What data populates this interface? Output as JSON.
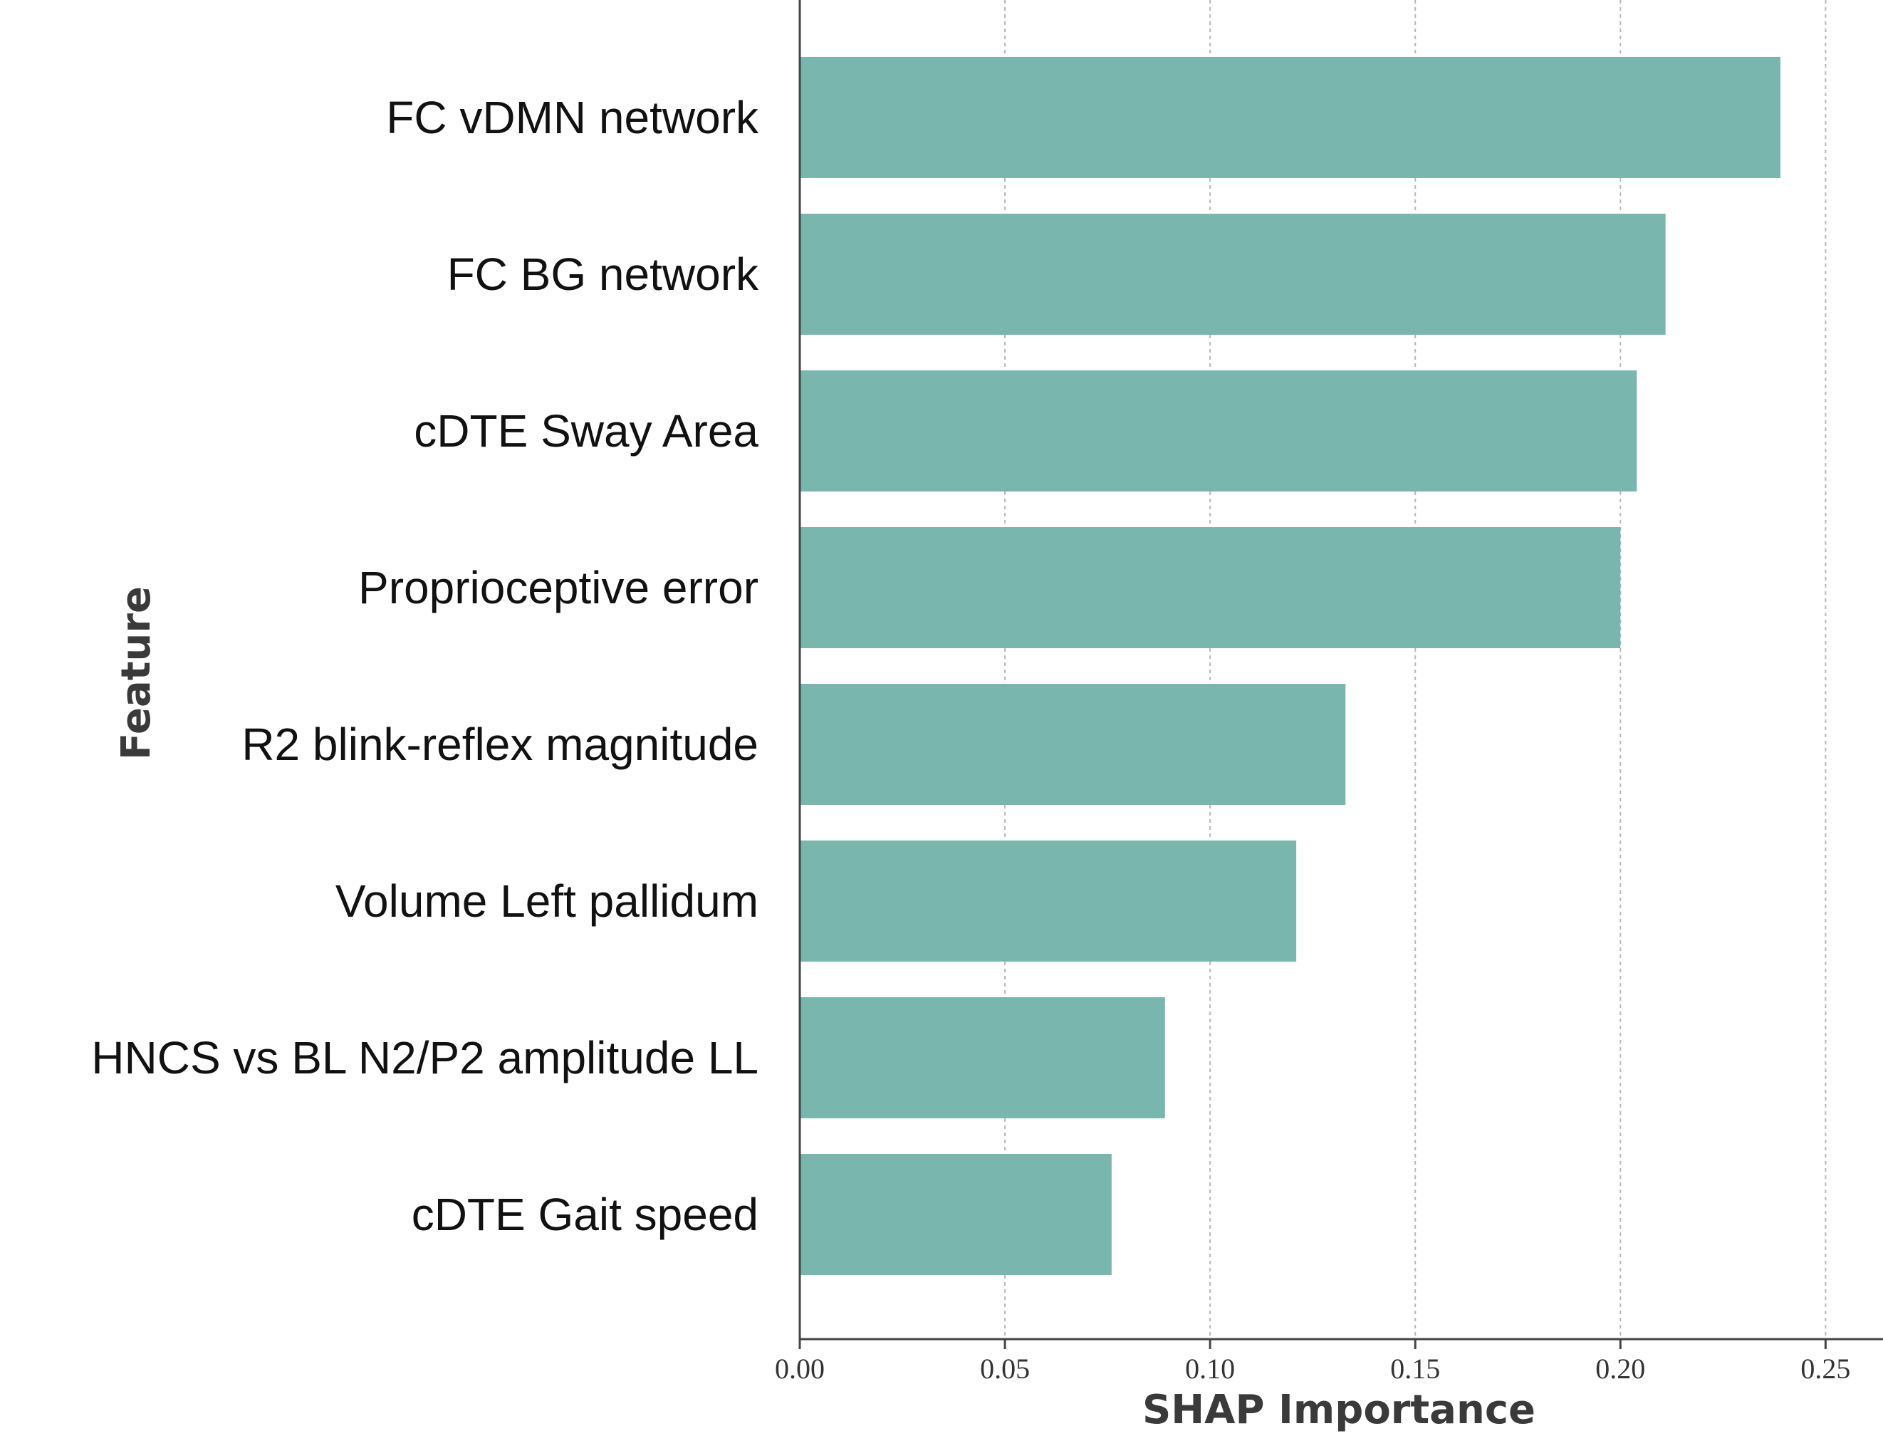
{
  "chart_data": {
    "type": "bar",
    "orientation": "horizontal",
    "categories": [
      "FC vDMN network",
      "FC BG network",
      "cDTE Sway Area",
      "Proprioceptive error",
      "R2 blink-reflex magnitude",
      "Volume Left pallidum",
      "HNCS  vs BL N2/P2 amplitude LL",
      "cDTE Gait speed"
    ],
    "values": [
      0.239,
      0.211,
      0.204,
      0.2,
      0.133,
      0.121,
      0.089,
      0.076
    ],
    "xlabel": "SHAP Importance",
    "ylabel": "Feature",
    "xlim": [
      0.0,
      0.264
    ],
    "xticks": [
      0.0,
      0.05,
      0.1,
      0.15,
      0.2,
      0.25
    ],
    "xtick_labels": [
      "0.00",
      "0.05",
      "0.10",
      "0.15",
      "0.20",
      "0.25"
    ],
    "grid": "vertical-dashed",
    "bar_color": "#78b6ae"
  }
}
